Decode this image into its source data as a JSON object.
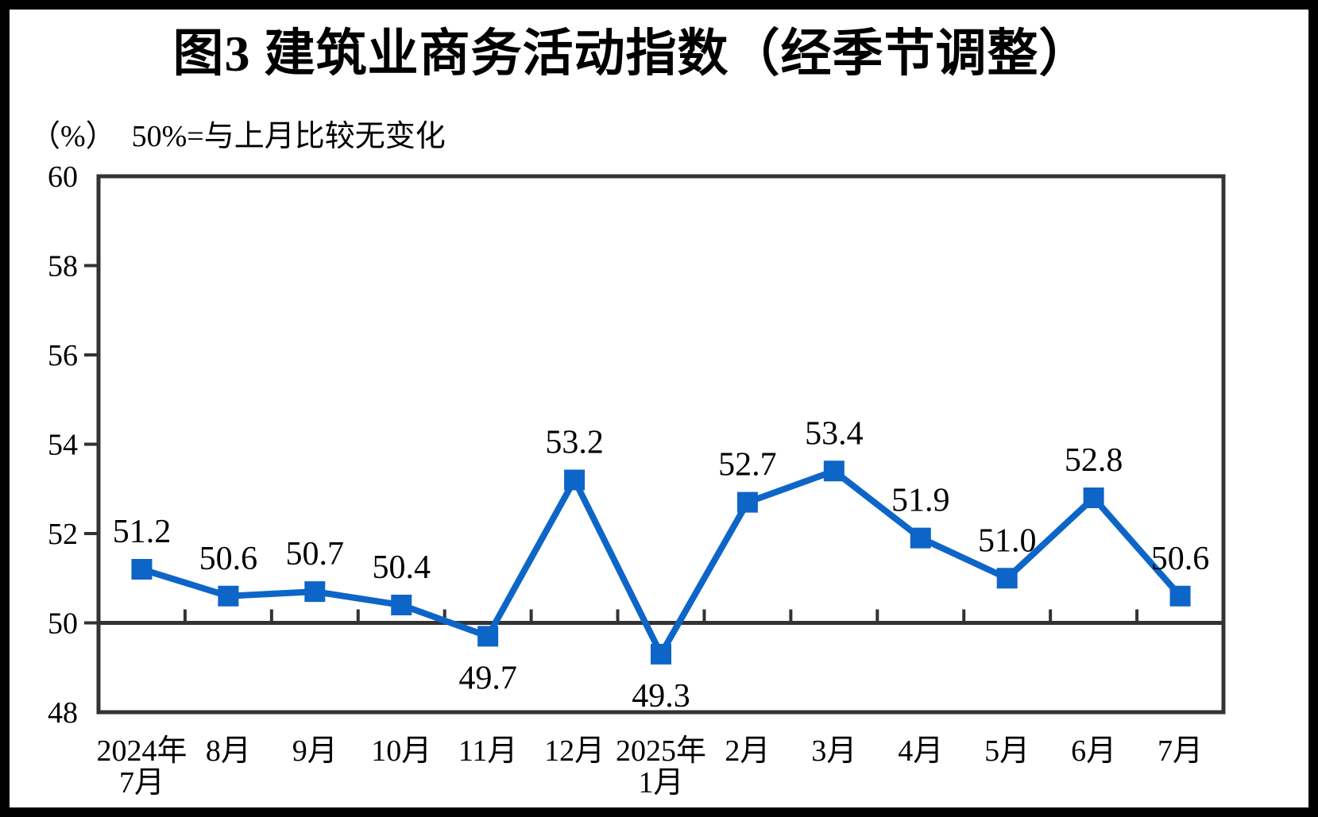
{
  "page": {
    "title": "图3  建筑业商务活动指数（经季节调整）",
    "unit_label": "（%）",
    "reference_note": "50%=与上月比较无变化"
  },
  "colors": {
    "line": "#0D65C8",
    "axis": "#333333",
    "text": "#000000",
    "frame": "#000000",
    "background": "#FFFFFF"
  },
  "chart_data": {
    "type": "line",
    "title": "图3  建筑业商务活动指数（经季节调整）",
    "unit": "%",
    "note": "50%=与上月比较无变化",
    "categories": [
      "2024年\n7月",
      "8月",
      "9月",
      "10月",
      "11月",
      "12月",
      "2025年\n1月",
      "2月",
      "3月",
      "4月",
      "5月",
      "6月",
      "7月"
    ],
    "series": [
      {
        "name": "建筑业商务活动指数",
        "values": [
          51.2,
          50.6,
          50.7,
          50.4,
          49.7,
          53.2,
          49.3,
          52.7,
          53.4,
          51.9,
          51.0,
          52.8,
          50.6
        ]
      }
    ],
    "ylim": [
      48,
      60
    ],
    "yticks": [
      48,
      50,
      52,
      54,
      56,
      58,
      60
    ],
    "reference_line": 50,
    "marker": "square",
    "grid": false,
    "legend": "none",
    "value_label_decimals": 1,
    "label_positions": [
      "above",
      "above",
      "above",
      "above",
      "below",
      "above",
      "below",
      "above",
      "above",
      "above",
      "above",
      "above",
      "above"
    ]
  }
}
